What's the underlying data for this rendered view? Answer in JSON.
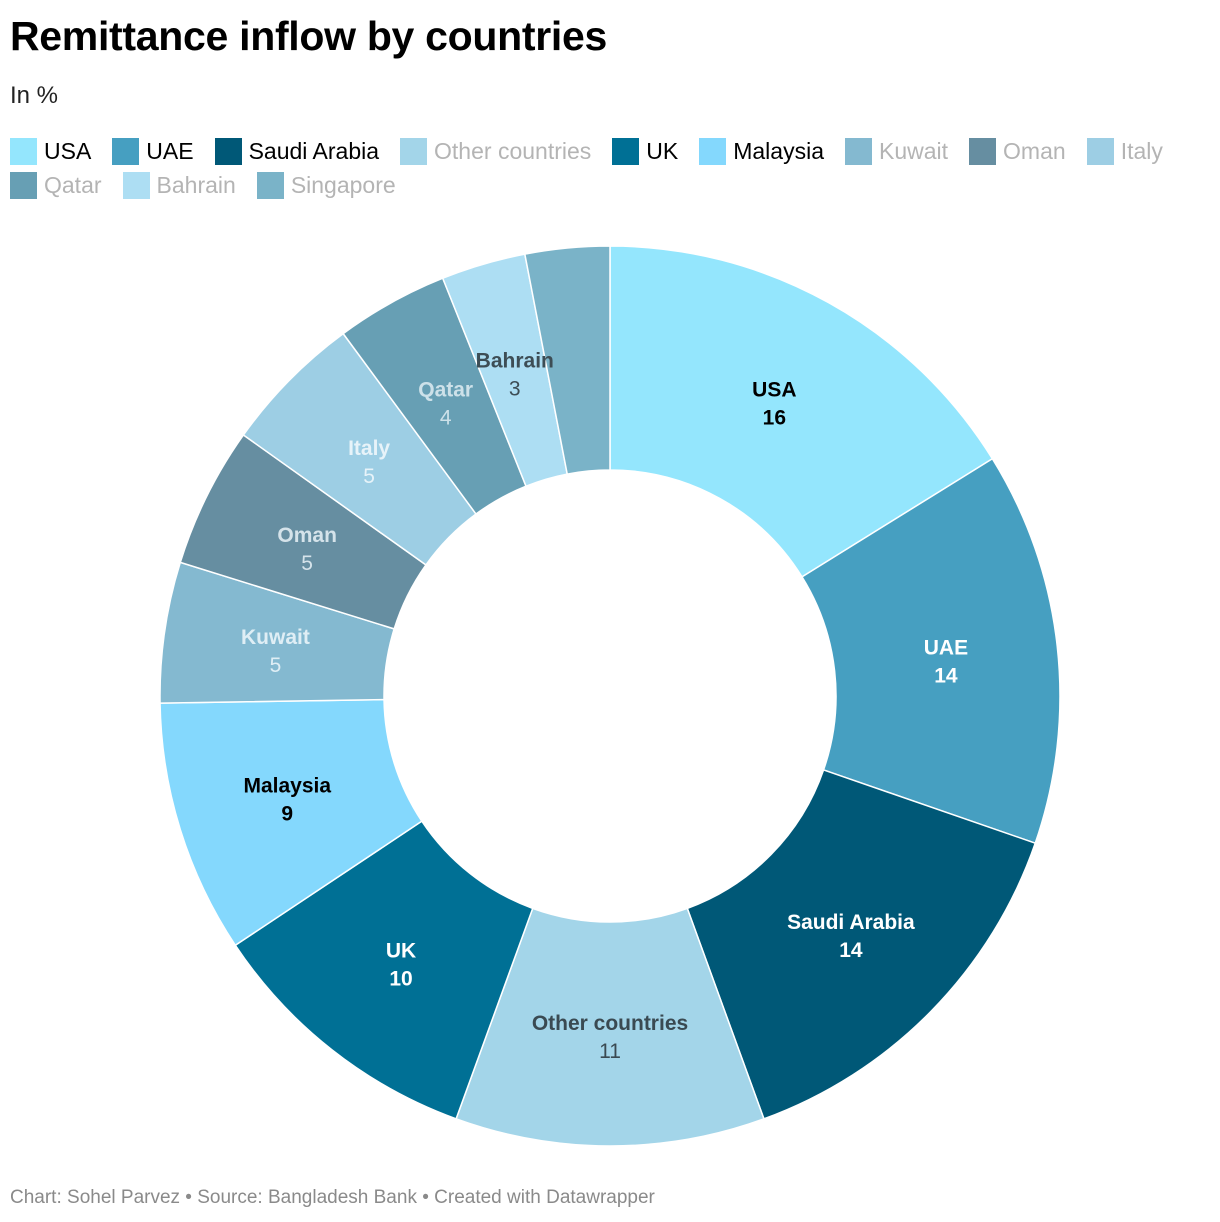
{
  "header": {
    "title": "Remittance inflow by countries",
    "subtitle": "In %"
  },
  "chart_data": {
    "type": "pie",
    "variant": "donut",
    "title": "Remittance inflow by countries",
    "subtitle": "In %",
    "unit": "%",
    "legend_position": "top",
    "slices": [
      {
        "label": "USA",
        "value": 16,
        "color": "#94e6fd",
        "text_color": "#000000",
        "legend_muted": false
      },
      {
        "label": "UAE",
        "value": 14,
        "color": "#469fc1",
        "text_color": "#ffffff",
        "legend_muted": false
      },
      {
        "label": "Saudi Arabia",
        "value": 14,
        "color": "#005877",
        "text_color": "#ffffff",
        "legend_muted": false
      },
      {
        "label": "Other countries",
        "value": 11,
        "color": "#a3d5e9",
        "text_color": "#3a4a52",
        "legend_muted": true
      },
      {
        "label": "UK",
        "value": 10,
        "color": "#007095",
        "text_color": "#ffffff",
        "legend_muted": false
      },
      {
        "label": "Malaysia",
        "value": 9,
        "color": "#84d8fd",
        "text_color": "#000000",
        "legend_muted": false
      },
      {
        "label": "Kuwait",
        "value": 5,
        "color": "#84b9d0",
        "text_color": "#dfeef5",
        "legend_muted": true
      },
      {
        "label": "Oman",
        "value": 5,
        "color": "#668ea1",
        "text_color": "#d5e3ea",
        "legend_muted": true
      },
      {
        "label": "Italy",
        "value": 5,
        "color": "#9dcee4",
        "text_color": "#e7f3f9",
        "legend_muted": true
      },
      {
        "label": "Qatar",
        "value": 4,
        "color": "#679fb4",
        "text_color": "#cde1e9",
        "legend_muted": true
      },
      {
        "label": "Bahrain",
        "value": 3,
        "color": "#addef3",
        "text_color": "#3d4d55",
        "legend_muted": true
      },
      {
        "label": "Singapore",
        "value": 3,
        "color": "#7ab3c8",
        "text_color": "#c9e2ec",
        "legend_muted": true,
        "show_label": false
      }
    ]
  },
  "footer": {
    "credit": "Chart: Sohel Parvez • Source: Bangladesh Bank • Created with Datawrapper"
  }
}
